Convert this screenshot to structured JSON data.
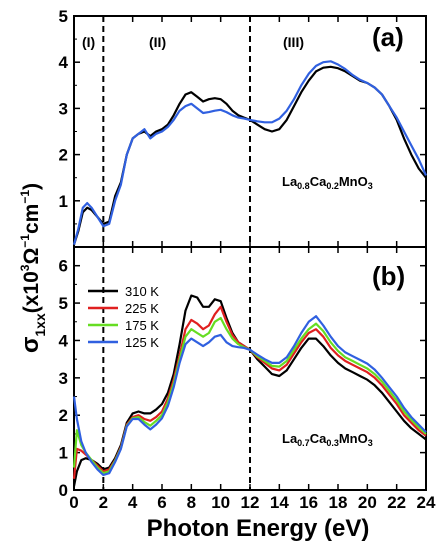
{
  "figure": {
    "xlabel": "Photon Energy (eV)",
    "ylabel_main": "σ",
    "ylabel_sub": "1xx",
    "ylabel_units": "(x10",
    "ylabel_units_sup": "3",
    "ylabel_units_rest": "Ω",
    "ylabel_units_sup2": "−1",
    "ylabel_units_rest2": "cm",
    "ylabel_units_sup3": "−1",
    "ylabel_units_close": ")"
  },
  "chart_data": [
    {
      "type": "line",
      "panel_label": "(a)",
      "compound": {
        "main1": "La",
        "sub1": "0.8",
        "main2": "Ca",
        "sub2": "0.2",
        "main3": "MnO",
        "sub3": "3"
      },
      "regions": [
        "(I)",
        "(II)",
        "(III)"
      ],
      "dividers_x": [
        2,
        12
      ],
      "xlim": [
        0,
        24
      ],
      "ylim": [
        0,
        5
      ],
      "xticks": [
        0,
        2,
        4,
        6,
        8,
        10,
        12,
        14,
        16,
        18,
        20,
        22,
        24
      ],
      "yticks": [
        0,
        1,
        2,
        3,
        4,
        5
      ],
      "series": [
        {
          "color": "#000000",
          "x": [
            0,
            0.3,
            0.6,
            0.9,
            1.2,
            1.6,
            2.0,
            2.4,
            2.8,
            3.2,
            3.6,
            4.0,
            4.4,
            4.8,
            5.2,
            5.6,
            6.0,
            6.4,
            6.8,
            7.2,
            7.6,
            8.0,
            8.4,
            8.8,
            9.2,
            9.6,
            10.0,
            10.4,
            10.8,
            11.2,
            11.6,
            12.0,
            12.5,
            13.0,
            13.5,
            14.0,
            14.5,
            15.0,
            15.5,
            16.0,
            16.5,
            17.0,
            17.5,
            18.0,
            18.5,
            19.0,
            19.5,
            20.0,
            20.5,
            21.0,
            21.5,
            22.0,
            22.5,
            23.0,
            23.5,
            24.0
          ],
          "y": [
            0.05,
            0.35,
            0.75,
            0.85,
            0.8,
            0.65,
            0.5,
            0.55,
            1.1,
            1.4,
            2.0,
            2.35,
            2.45,
            2.5,
            2.4,
            2.5,
            2.55,
            2.65,
            2.85,
            3.1,
            3.3,
            3.35,
            3.25,
            3.15,
            3.2,
            3.22,
            3.2,
            3.1,
            2.95,
            2.85,
            2.8,
            2.75,
            2.65,
            2.55,
            2.5,
            2.55,
            2.75,
            3.05,
            3.35,
            3.6,
            3.8,
            3.88,
            3.9,
            3.87,
            3.8,
            3.7,
            3.6,
            3.55,
            3.45,
            3.3,
            3.05,
            2.75,
            2.35,
            2.0,
            1.7,
            1.5
          ]
        },
        {
          "color": "#3060e0",
          "x": [
            0,
            0.3,
            0.6,
            0.9,
            1.2,
            1.6,
            2.0,
            2.4,
            2.8,
            3.2,
            3.6,
            4.0,
            4.4,
            4.8,
            5.2,
            5.6,
            6.0,
            6.4,
            6.8,
            7.2,
            7.6,
            8.0,
            8.4,
            8.8,
            9.2,
            9.6,
            10.0,
            10.4,
            10.8,
            11.2,
            11.6,
            12.0,
            12.5,
            13.0,
            13.5,
            14.0,
            14.5,
            15.0,
            15.5,
            16.0,
            16.5,
            17.0,
            17.5,
            18.0,
            18.5,
            19.0,
            19.5,
            20.0,
            20.5,
            21.0,
            21.5,
            22.0,
            22.5,
            23.0,
            23.5,
            24.0
          ],
          "y": [
            0.05,
            0.4,
            0.85,
            0.95,
            0.85,
            0.65,
            0.45,
            0.5,
            1.0,
            1.35,
            2.0,
            2.35,
            2.45,
            2.55,
            2.35,
            2.45,
            2.5,
            2.6,
            2.75,
            2.95,
            3.05,
            3.1,
            3.0,
            2.9,
            2.92,
            2.95,
            2.97,
            2.92,
            2.85,
            2.8,
            2.78,
            2.75,
            2.72,
            2.7,
            2.7,
            2.78,
            2.95,
            3.2,
            3.5,
            3.75,
            3.92,
            4.0,
            4.02,
            3.95,
            3.85,
            3.72,
            3.62,
            3.55,
            3.45,
            3.3,
            3.05,
            2.8,
            2.5,
            2.2,
            1.9,
            1.55
          ]
        }
      ]
    },
    {
      "type": "line",
      "panel_label": "(b)",
      "compound": {
        "main1": "La",
        "sub1": "0.7",
        "main2": "Ca",
        "sub2": "0.3",
        "main3": "MnO",
        "sub3": "3"
      },
      "dividers_x": [
        2,
        12
      ],
      "xlim": [
        0,
        24
      ],
      "ylim": [
        0,
        6.5
      ],
      "xticks": [
        0,
        2,
        4,
        6,
        8,
        10,
        12,
        14,
        16,
        18,
        20,
        22,
        24
      ],
      "xticklabels": [
        "0",
        "2",
        "4",
        "6",
        "8",
        "10",
        "12",
        "14",
        "16",
        "18",
        "20",
        "22",
        "24"
      ],
      "yticks": [
        0,
        1,
        2,
        3,
        4,
        5,
        6
      ],
      "legend_position": "top-left",
      "series": [
        {
          "name": "310 K",
          "color": "#000000",
          "x": [
            0,
            0.2,
            0.5,
            0.8,
            1.2,
            1.6,
            2.0,
            2.4,
            2.8,
            3.2,
            3.6,
            4.0,
            4.4,
            4.8,
            5.2,
            5.6,
            6.0,
            6.4,
            6.8,
            7.2,
            7.6,
            8.0,
            8.4,
            8.8,
            9.2,
            9.6,
            10.0,
            10.4,
            10.8,
            11.2,
            11.6,
            12.0,
            12.5,
            13.0,
            13.5,
            14.0,
            14.5,
            15.0,
            15.5,
            16.0,
            16.5,
            17.0,
            17.5,
            18.0,
            18.5,
            19.0,
            19.5,
            20.0,
            20.5,
            21.0,
            21.5,
            22.0,
            22.5,
            23.0,
            23.5,
            24.0
          ],
          "y": [
            0.1,
            0.5,
            0.8,
            0.85,
            0.8,
            0.7,
            0.55,
            0.6,
            0.85,
            1.2,
            1.8,
            2.05,
            2.1,
            2.05,
            2.05,
            2.15,
            2.3,
            2.6,
            3.1,
            3.9,
            4.8,
            5.2,
            5.15,
            4.9,
            4.9,
            5.1,
            5.05,
            4.6,
            4.2,
            3.95,
            3.85,
            3.75,
            3.5,
            3.3,
            3.1,
            3.05,
            3.2,
            3.5,
            3.8,
            4.05,
            4.05,
            3.85,
            3.6,
            3.4,
            3.25,
            3.15,
            3.05,
            2.95,
            2.8,
            2.6,
            2.35,
            2.1,
            1.85,
            1.65,
            1.5,
            1.35
          ]
        },
        {
          "name": "225 K",
          "color": "#e02020",
          "x": [
            0,
            0.2,
            0.5,
            0.8,
            1.2,
            1.6,
            2.0,
            2.4,
            2.8,
            3.2,
            3.6,
            4.0,
            4.4,
            4.8,
            5.2,
            5.6,
            6.0,
            6.4,
            6.8,
            7.2,
            7.6,
            8.0,
            8.4,
            8.8,
            9.2,
            9.6,
            10.0,
            10.4,
            10.8,
            11.2,
            11.6,
            12.0,
            12.5,
            13.0,
            13.5,
            14.0,
            14.5,
            15.0,
            15.5,
            16.0,
            16.5,
            17.0,
            17.5,
            18.0,
            18.5,
            19.0,
            19.5,
            20.0,
            20.5,
            21.0,
            21.5,
            22.0,
            22.5,
            23.0,
            23.5,
            24.0
          ],
          "y": [
            0.3,
            1.1,
            1.05,
            0.95,
            0.8,
            0.65,
            0.5,
            0.55,
            0.8,
            1.15,
            1.75,
            1.95,
            2.0,
            1.9,
            1.85,
            1.95,
            2.1,
            2.45,
            2.95,
            3.6,
            4.3,
            4.55,
            4.45,
            4.3,
            4.4,
            4.7,
            4.9,
            4.5,
            4.15,
            3.95,
            3.85,
            3.75,
            3.55,
            3.4,
            3.25,
            3.2,
            3.35,
            3.65,
            3.95,
            4.2,
            4.3,
            4.1,
            3.8,
            3.6,
            3.45,
            3.35,
            3.25,
            3.15,
            3.0,
            2.8,
            2.55,
            2.3,
            2.0,
            1.8,
            1.6,
            1.45
          ]
        },
        {
          "name": "175 K",
          "color": "#66dd22",
          "x": [
            0,
            0.2,
            0.5,
            0.8,
            1.2,
            1.6,
            2.0,
            2.4,
            2.8,
            3.2,
            3.6,
            4.0,
            4.4,
            4.8,
            5.2,
            5.6,
            6.0,
            6.4,
            6.8,
            7.2,
            7.6,
            8.0,
            8.4,
            8.8,
            9.2,
            9.6,
            10.0,
            10.4,
            10.8,
            11.2,
            11.6,
            12.0,
            12.5,
            13.0,
            13.5,
            14.0,
            14.5,
            15.0,
            15.5,
            16.0,
            16.5,
            17.0,
            17.5,
            18.0,
            18.5,
            19.0,
            19.5,
            20.0,
            20.5,
            21.0,
            21.5,
            22.0,
            22.5,
            23.0,
            23.5,
            24.0
          ],
          "y": [
            0.6,
            1.6,
            1.2,
            1.0,
            0.8,
            0.6,
            0.45,
            0.5,
            0.78,
            1.12,
            1.72,
            1.92,
            1.95,
            1.82,
            1.72,
            1.85,
            2.0,
            2.35,
            2.85,
            3.5,
            4.1,
            4.3,
            4.2,
            4.1,
            4.2,
            4.5,
            4.6,
            4.3,
            4.05,
            3.9,
            3.82,
            3.75,
            3.58,
            3.45,
            3.32,
            3.3,
            3.45,
            3.75,
            4.05,
            4.3,
            4.45,
            4.25,
            3.95,
            3.72,
            3.55,
            3.45,
            3.35,
            3.25,
            3.1,
            2.9,
            2.65,
            2.4,
            2.1,
            1.88,
            1.68,
            1.5
          ]
        },
        {
          "name": "125 K",
          "color": "#3060e0",
          "x": [
            0,
            0.2,
            0.5,
            0.8,
            1.2,
            1.6,
            2.0,
            2.4,
            2.8,
            3.2,
            3.6,
            4.0,
            4.4,
            4.8,
            5.2,
            5.6,
            6.0,
            6.4,
            6.8,
            7.2,
            7.6,
            8.0,
            8.4,
            8.8,
            9.2,
            9.6,
            10.0,
            10.4,
            10.8,
            11.2,
            11.6,
            12.0,
            12.5,
            13.0,
            13.5,
            14.0,
            14.5,
            15.0,
            15.5,
            16.0,
            16.5,
            17.0,
            17.5,
            18.0,
            18.5,
            19.0,
            19.5,
            20.0,
            20.5,
            21.0,
            21.5,
            22.0,
            22.5,
            23.0,
            23.5,
            24.0
          ],
          "y": [
            2.5,
            1.9,
            1.3,
            1.0,
            0.75,
            0.55,
            0.4,
            0.45,
            0.75,
            1.1,
            1.7,
            1.9,
            1.9,
            1.75,
            1.62,
            1.75,
            1.92,
            2.25,
            2.75,
            3.4,
            3.9,
            4.05,
            3.95,
            3.85,
            3.95,
            4.1,
            4.15,
            3.95,
            3.85,
            3.82,
            3.8,
            3.75,
            3.62,
            3.5,
            3.4,
            3.4,
            3.55,
            3.85,
            4.2,
            4.5,
            4.65,
            4.4,
            4.1,
            3.85,
            3.68,
            3.58,
            3.48,
            3.38,
            3.22,
            3.0,
            2.75,
            2.5,
            2.2,
            1.95,
            1.75,
            1.55
          ]
        }
      ]
    }
  ]
}
